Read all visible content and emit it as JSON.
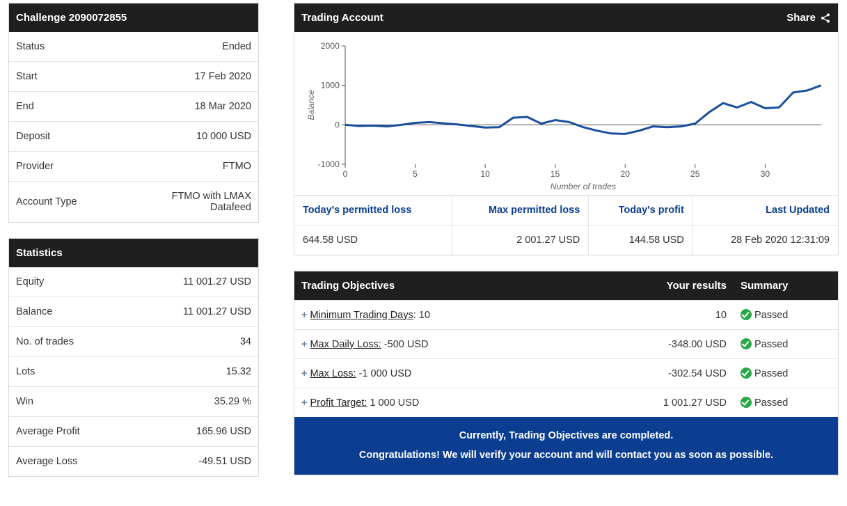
{
  "challenge": {
    "header": "Challenge 2090072855",
    "rows": [
      {
        "k": "Status",
        "v": "Ended"
      },
      {
        "k": "Start",
        "v": "17 Feb 2020"
      },
      {
        "k": "End",
        "v": "18 Mar 2020"
      },
      {
        "k": "Deposit",
        "v": "10 000 USD"
      },
      {
        "k": "Provider",
        "v": "FTMO"
      },
      {
        "k": "Account Type",
        "v": "FTMO with LMAX Datafeed"
      }
    ]
  },
  "statistics": {
    "header": "Statistics",
    "rows": [
      {
        "k": "Equity",
        "v": "11 001.27 USD"
      },
      {
        "k": "Balance",
        "v": "11 001.27 USD"
      },
      {
        "k": "No. of trades",
        "v": "34"
      },
      {
        "k": "Lots",
        "v": "15.32"
      },
      {
        "k": "Win",
        "v": "35.29 %"
      },
      {
        "k": "Average Profit",
        "v": "165.96 USD"
      },
      {
        "k": "Average Loss",
        "v": "-49.51 USD"
      }
    ]
  },
  "account": {
    "header": "Trading Account",
    "share_label": "Share",
    "chart": {
      "type": "line",
      "xlabel": "Number of trades",
      "ylabel": "Balance",
      "xlim": [
        0,
        34
      ],
      "ylim": [
        -1000,
        2000
      ],
      "xticks": [
        0,
        5,
        10,
        15,
        20,
        25,
        30
      ],
      "yticks": [
        -1000,
        0,
        1000,
        2000
      ],
      "line_color": "#1b4f9c",
      "line_width": 3,
      "axis_color": "#555555",
      "background_color": "#ffffff",
      "label_fontsize": 12,
      "series": [
        {
          "x": 0,
          "y": 0
        },
        {
          "x": 1,
          "y": -30
        },
        {
          "x": 2,
          "y": -20
        },
        {
          "x": 3,
          "y": -40
        },
        {
          "x": 4,
          "y": 0
        },
        {
          "x": 5,
          "y": 50
        },
        {
          "x": 6,
          "y": 70
        },
        {
          "x": 7,
          "y": 40
        },
        {
          "x": 8,
          "y": 10
        },
        {
          "x": 9,
          "y": -30
        },
        {
          "x": 10,
          "y": -70
        },
        {
          "x": 11,
          "y": -60
        },
        {
          "x": 12,
          "y": 180
        },
        {
          "x": 13,
          "y": 200
        },
        {
          "x": 14,
          "y": 30
        },
        {
          "x": 15,
          "y": 120
        },
        {
          "x": 16,
          "y": 70
        },
        {
          "x": 17,
          "y": -60
        },
        {
          "x": 18,
          "y": -150
        },
        {
          "x": 19,
          "y": -220
        },
        {
          "x": 20,
          "y": -230
        },
        {
          "x": 21,
          "y": -150
        },
        {
          "x": 22,
          "y": -40
        },
        {
          "x": 23,
          "y": -60
        },
        {
          "x": 24,
          "y": -40
        },
        {
          "x": 25,
          "y": 30
        },
        {
          "x": 26,
          "y": 320
        },
        {
          "x": 27,
          "y": 550
        },
        {
          "x": 28,
          "y": 440
        },
        {
          "x": 29,
          "y": 580
        },
        {
          "x": 30,
          "y": 420
        },
        {
          "x": 31,
          "y": 440
        },
        {
          "x": 32,
          "y": 820
        },
        {
          "x": 33,
          "y": 870
        },
        {
          "x": 34,
          "y": 1000
        }
      ]
    },
    "stat_headers": [
      "Today's permitted loss",
      "Max permitted loss",
      "Today's profit",
      "Last Updated"
    ],
    "stat_values": [
      "644.58 USD",
      "2 001.27 USD",
      "144.58 USD",
      "28 Feb 2020 12:31:09"
    ]
  },
  "objectives": {
    "header": "Trading Objectives",
    "col_results": "Your results",
    "col_summary": "Summary",
    "rows": [
      {
        "label": "Minimum Trading Days",
        "target": ": 10",
        "result": "10",
        "summary": "Passed"
      },
      {
        "label": "Max Daily Loss:",
        "target": " -500 USD",
        "result": "-348.00 USD",
        "summary": "Passed"
      },
      {
        "label": "Max Loss:",
        "target": " -1 000 USD",
        "result": "-302.54 USD",
        "summary": "Passed"
      },
      {
        "label": "Profit Target:",
        "target": " 1 000 USD",
        "result": "1 001.27 USD",
        "summary": "Passed"
      }
    ],
    "congrats_line1": "Currently, Trading Objectives are completed.",
    "congrats_line2": "Congratulations! We will verify your account and will contact you as soon as possible."
  }
}
